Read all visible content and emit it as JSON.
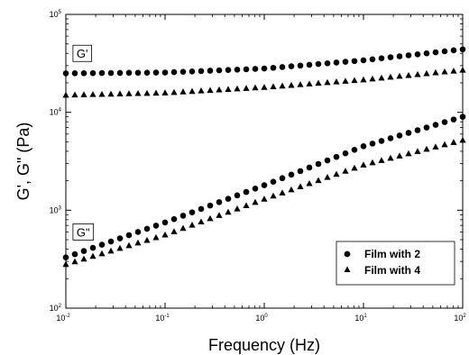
{
  "chart_data": {
    "type": "scatter",
    "xscale": "log",
    "yscale": "log",
    "xlim": [
      0.01,
      100
    ],
    "ylim": [
      100,
      100000
    ],
    "xlabel": "Frequency (Hz)",
    "ylabel": "G', G\" (Pa)",
    "x_ticks": [
      {
        "base": "10",
        "exp": "-2"
      },
      {
        "base": "10",
        "exp": "-1"
      },
      {
        "base": "10",
        "exp": "0"
      },
      {
        "base": "10",
        "exp": "1"
      },
      {
        "base": "10",
        "exp": "2"
      }
    ],
    "y_ticks": [
      {
        "base": "10",
        "exp": "2"
      },
      {
        "base": "10",
        "exp": "3"
      },
      {
        "base": "10",
        "exp": "4"
      },
      {
        "base": "10",
        "exp": "5"
      }
    ],
    "annotations": [
      {
        "text": "G'",
        "x": 0.0118,
        "y": 40000
      },
      {
        "text": "G\"",
        "x": 0.0118,
        "y": 600
      }
    ],
    "legend": {
      "placement": "bottom-right",
      "entries": [
        {
          "prefix": "Film with ",
          "bold": "2",
          "marker": "circle"
        },
        {
          "prefix": "Film with ",
          "bold": "4",
          "marker": "triangle"
        }
      ]
    },
    "series": [
      {
        "modulus": "G'",
        "film": "2",
        "marker": "circle",
        "n": 45,
        "y_at": [
          [
            0.01,
            25000
          ],
          [
            0.1,
            25500
          ],
          [
            1,
            28000
          ],
          [
            10,
            34000
          ],
          [
            100,
            44000
          ]
        ]
      },
      {
        "modulus": "G'",
        "film": "4",
        "marker": "triangle",
        "n": 45,
        "y_at": [
          [
            0.01,
            15000
          ],
          [
            0.1,
            15800
          ],
          [
            1,
            18000
          ],
          [
            10,
            21500
          ],
          [
            100,
            27000
          ]
        ]
      },
      {
        "modulus": "G\"",
        "film": "2",
        "marker": "circle",
        "n": 45,
        "y_at": [
          [
            0.01,
            330
          ],
          [
            0.1,
            750
          ],
          [
            1,
            1800
          ],
          [
            10,
            4500
          ],
          [
            100,
            9000
          ]
        ]
      },
      {
        "modulus": "G\"",
        "film": "4",
        "marker": "triangle",
        "n": 45,
        "y_at": [
          [
            0.01,
            280
          ],
          [
            0.1,
            560
          ],
          [
            1,
            1300
          ],
          [
            10,
            2900
          ],
          [
            100,
            5200
          ]
        ]
      }
    ]
  }
}
